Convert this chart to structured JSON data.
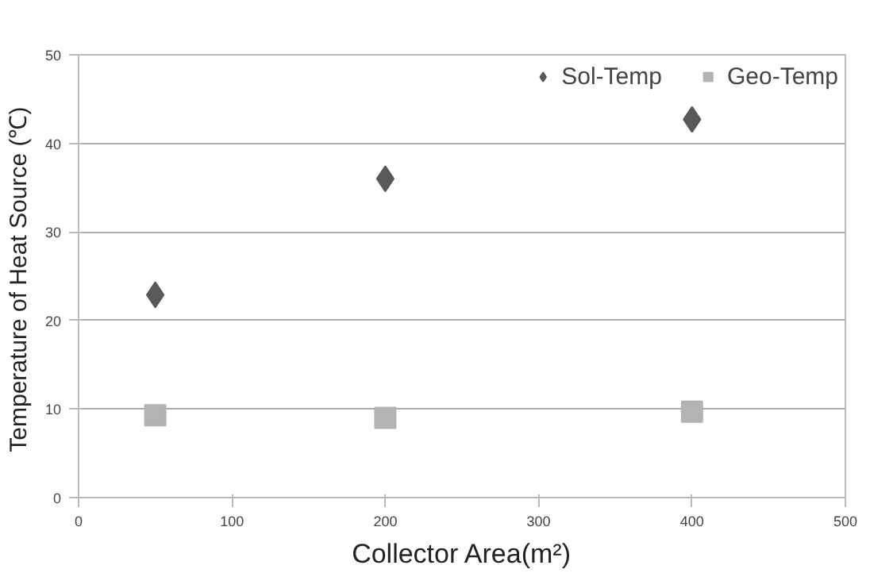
{
  "chart_data": {
    "type": "scatter",
    "xlabel": "Collector Area(m²)",
    "ylabel": "Temperature  of Heat Source (℃)",
    "x": [
      50,
      200,
      400
    ],
    "series": [
      {
        "name": "Sol-Temp",
        "color": "#595959",
        "marker": "diamond",
        "values": [
          22.9,
          36.0,
          42.7
        ]
      },
      {
        "name": "Geo-Temp",
        "color": "#b3b3b3",
        "marker": "square",
        "values": [
          9.3,
          9.0,
          9.7
        ]
      }
    ],
    "xlim": [
      0,
      500
    ],
    "xticks": [
      0,
      100,
      200,
      300,
      400,
      500
    ],
    "ylim": [
      0,
      50
    ],
    "yticks": [
      0,
      10,
      20,
      30,
      40,
      50
    ],
    "grid": "y",
    "legend": "top right"
  }
}
